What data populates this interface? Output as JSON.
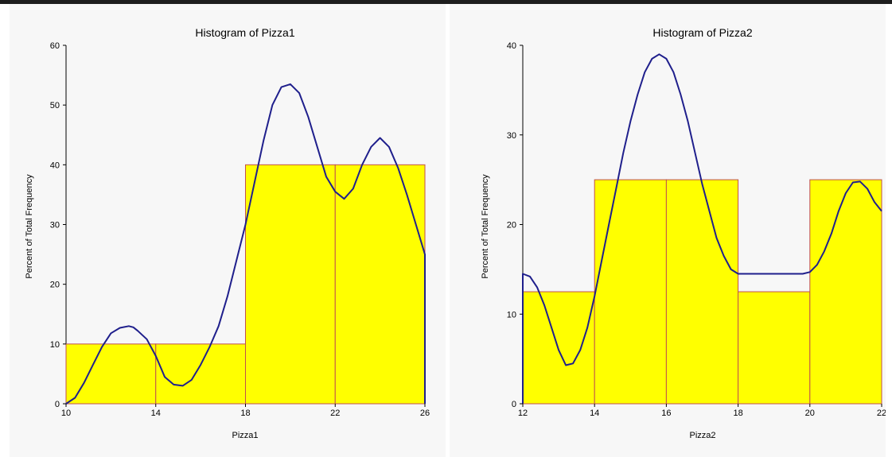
{
  "chart_data": [
    {
      "type": "bar",
      "title": "Histogram of Pizza1",
      "xlabel": "Pizza1",
      "ylabel": "Percent of Total Frequency",
      "xlim": [
        10,
        26
      ],
      "ylim": [
        0,
        60
      ],
      "xticks": [
        "10",
        "14",
        "18",
        "22",
        "26"
      ],
      "yticks": [
        "0",
        "10",
        "20",
        "30",
        "40",
        "50",
        "60"
      ],
      "bins": [
        {
          "from": 10,
          "to": 14,
          "value": 10
        },
        {
          "from": 14,
          "to": 18,
          "value": 10
        },
        {
          "from": 18,
          "to": 22,
          "value": 40
        },
        {
          "from": 22,
          "to": 26,
          "value": 40
        }
      ],
      "density_curve": {
        "x": [
          10,
          10.4,
          10.8,
          11.2,
          11.6,
          12,
          12.4,
          12.8,
          13,
          13.2,
          13.6,
          14,
          14.4,
          14.8,
          15.2,
          15.6,
          16,
          16.4,
          16.8,
          17.2,
          17.6,
          18,
          18.4,
          18.8,
          19.2,
          19.6,
          20,
          20.4,
          20.8,
          21.2,
          21.6,
          22,
          22.4,
          22.8,
          23.2,
          23.6,
          24,
          24.4,
          24.8,
          25.2,
          25.6,
          26,
          26
        ],
        "y": [
          0,
          1,
          3.5,
          6.5,
          9.5,
          11.8,
          12.7,
          13,
          12.8,
          12.2,
          10.8,
          8,
          4.5,
          3.2,
          3,
          4,
          6.5,
          9.5,
          13,
          18,
          24,
          30,
          37,
          44,
          50,
          53,
          53.5,
          52,
          48,
          43,
          38,
          35.5,
          34.3,
          36,
          40,
          43,
          44.5,
          43,
          39.5,
          35,
          30,
          25,
          0
        ]
      },
      "colors": {
        "bar_fill": "#ffff00",
        "bar_edge": "#c0504d",
        "curve": "#1f1f8c"
      }
    },
    {
      "type": "bar",
      "title": "Histogram of Pizza2",
      "xlabel": "Pizza2",
      "ylabel": "Percent of Total Frequency",
      "xlim": [
        12,
        22
      ],
      "ylim": [
        0,
        40
      ],
      "xticks": [
        "12",
        "14",
        "16",
        "18",
        "20",
        "22"
      ],
      "yticks": [
        "0",
        "10",
        "20",
        "30",
        "40"
      ],
      "bins": [
        {
          "from": 12,
          "to": 14,
          "value": 12.5
        },
        {
          "from": 14,
          "to": 16,
          "value": 25
        },
        {
          "from": 16,
          "to": 18,
          "value": 25
        },
        {
          "from": 18,
          "to": 20,
          "value": 12.5
        },
        {
          "from": 20,
          "to": 22,
          "value": 25
        }
      ],
      "density_curve": {
        "x": [
          12,
          12,
          12.2,
          12.4,
          12.6,
          12.8,
          13,
          13.2,
          13.4,
          13.6,
          13.8,
          14,
          14.2,
          14.4,
          14.6,
          14.8,
          15,
          15.2,
          15.4,
          15.6,
          15.8,
          16,
          16.2,
          16.4,
          16.6,
          16.8,
          17,
          17.2,
          17.4,
          17.6,
          17.8,
          18,
          18.2,
          18.4,
          18.6,
          18.8,
          19,
          19.2,
          19.4,
          19.6,
          19.8,
          20,
          20.2,
          20.4,
          20.6,
          20.8,
          21,
          21.2,
          21.4,
          21.6,
          21.8,
          22
        ],
        "y": [
          0,
          14.5,
          14.2,
          13,
          11,
          8.5,
          6,
          4.3,
          4.5,
          6,
          8.5,
          12,
          16,
          20,
          24,
          28,
          31.5,
          34.5,
          37,
          38.5,
          39,
          38.5,
          37,
          34.5,
          31.5,
          28,
          24.5,
          21.5,
          18.5,
          16.5,
          15,
          14.5,
          14.5,
          14.5,
          14.5,
          14.5,
          14.5,
          14.5,
          14.5,
          14.5,
          14.5,
          14.7,
          15.5,
          17,
          19,
          21.5,
          23.5,
          24.7,
          24.8,
          24,
          22.5,
          21.5
        ],
        "x_note": "",
        "y_note": ""
      },
      "colors": {
        "bar_fill": "#ffff00",
        "bar_edge": "#c0504d",
        "curve": "#1f1f8c"
      }
    }
  ]
}
